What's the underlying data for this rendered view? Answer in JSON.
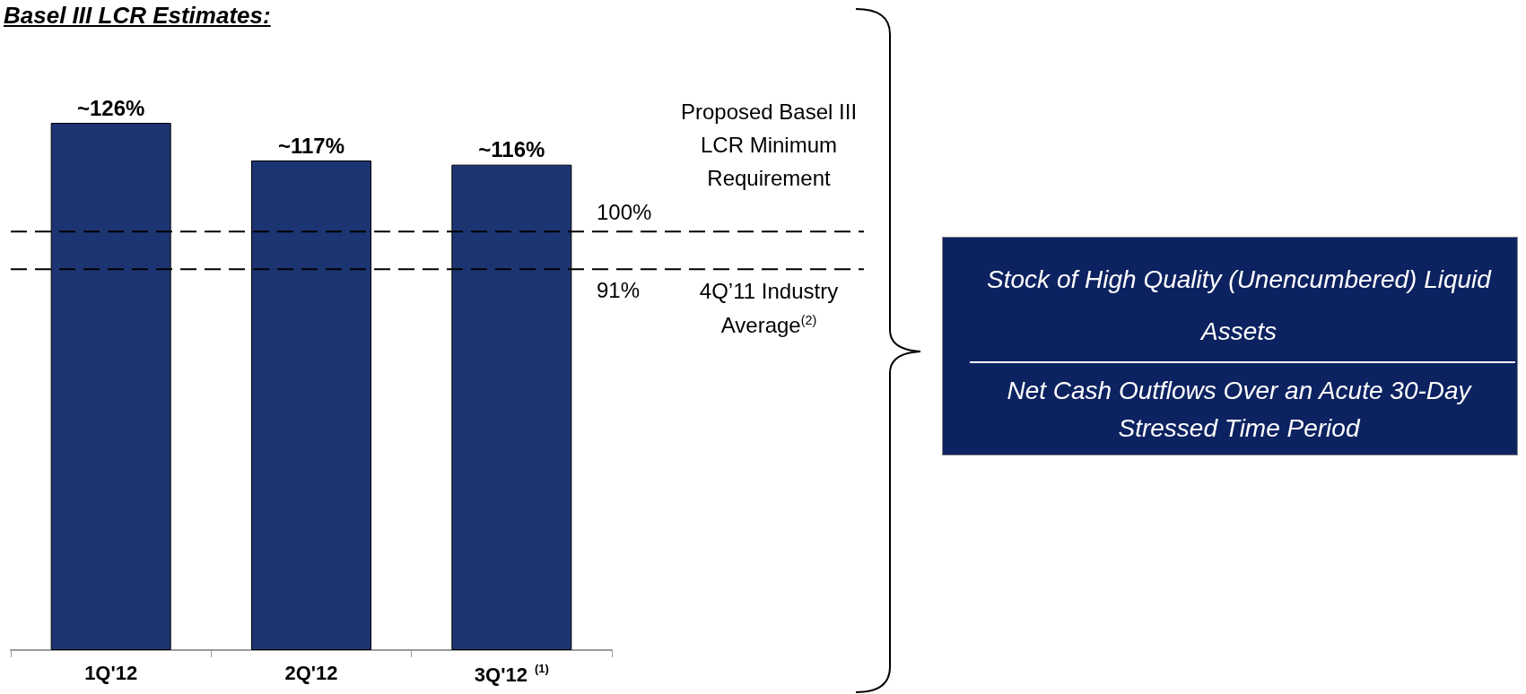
{
  "chart_data": {
    "type": "bar",
    "title": "Basel III LCR Estimates:",
    "categories": [
      "1Q'12",
      "2Q'12",
      "3Q'12$^{(1)}$"
    ],
    "values": [
      126,
      117,
      116
    ],
    "value_labels": [
      "~126%",
      "~117%",
      "~116%"
    ],
    "color": "#1c3572",
    "tick_labels": "x",
    "ref_lines": [
      {
        "axis": "y",
        "value": 100,
        "label": "100%",
        "color": "#000000",
        "line_style": "dashed"
      },
      {
        "axis": "y",
        "value": 91,
        "label": "91%",
        "color": "#000000",
        "line_style": "dashed"
      }
    ],
    "annotations": [
      "Proposed Basel III LCR Minimum Requirement",
      "4Q’11 Industry Average$^{(2)}$",
      "Stock of High Quality (Unencumbered) Liquid Assets",
      "Net Cash Outflows Over an Acute 30-Day Stressed Time Period"
    ],
    "grid": false
  }
}
